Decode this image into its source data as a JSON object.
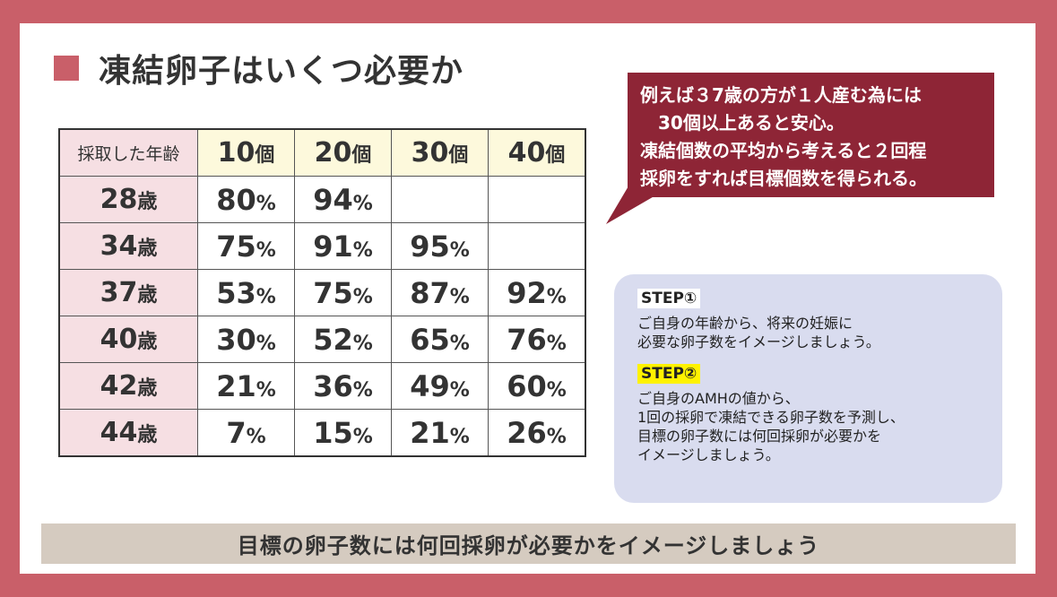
{
  "title": "凍結卵子はいくつ必要か",
  "table": {
    "corner_label": "採取した年齢",
    "column_numbers": [
      "10",
      "20",
      "30",
      "40"
    ],
    "column_unit": "個",
    "row_unit": "歳",
    "percent_sign": "%",
    "rows": [
      {
        "age": "28",
        "values": [
          "80",
          "94",
          "",
          ""
        ]
      },
      {
        "age": "34",
        "values": [
          "75",
          "91",
          "95",
          ""
        ]
      },
      {
        "age": "37",
        "values": [
          "53",
          "75",
          "87",
          "92"
        ]
      },
      {
        "age": "40",
        "values": [
          "30",
          "52",
          "65",
          "76"
        ]
      },
      {
        "age": "42",
        "values": [
          "21",
          "36",
          "49",
          "60"
        ]
      },
      {
        "age": "44",
        "values": [
          "7",
          "15",
          "21",
          "26"
        ]
      }
    ]
  },
  "bubble": {
    "lines": [
      "例えば３7歳の方が１人産む為には",
      "　30個以上あると安心。",
      "凍結個数の平均から考えると２回程",
      "採卵をすれば目標個数を得られる。"
    ]
  },
  "steps": {
    "step1": {
      "label": "STEP①",
      "lines": [
        "ご自身の年齢から、将来の妊娠に",
        "必要な卵子数をイメージしましょう。"
      ]
    },
    "step2": {
      "label": "STEP②",
      "lines": [
        "ご自身のAMHの値から、",
        "1回の採卵で凍結できる卵子数を予測し、",
        "目標の卵子数には何回採卵が必要かを",
        "イメージしましょう。"
      ]
    }
  },
  "banner": "目標の卵子数には何回採卵が必要かをイメージしましょう",
  "colors": {
    "frame": "#c95f69",
    "bubble": "#8e2536",
    "header_row": "#fdf9dc",
    "age_column": "#f6dfe3",
    "step_box": "#d9dcef",
    "step2_highlight": "#fff200",
    "banner": "#d5cbc0"
  }
}
